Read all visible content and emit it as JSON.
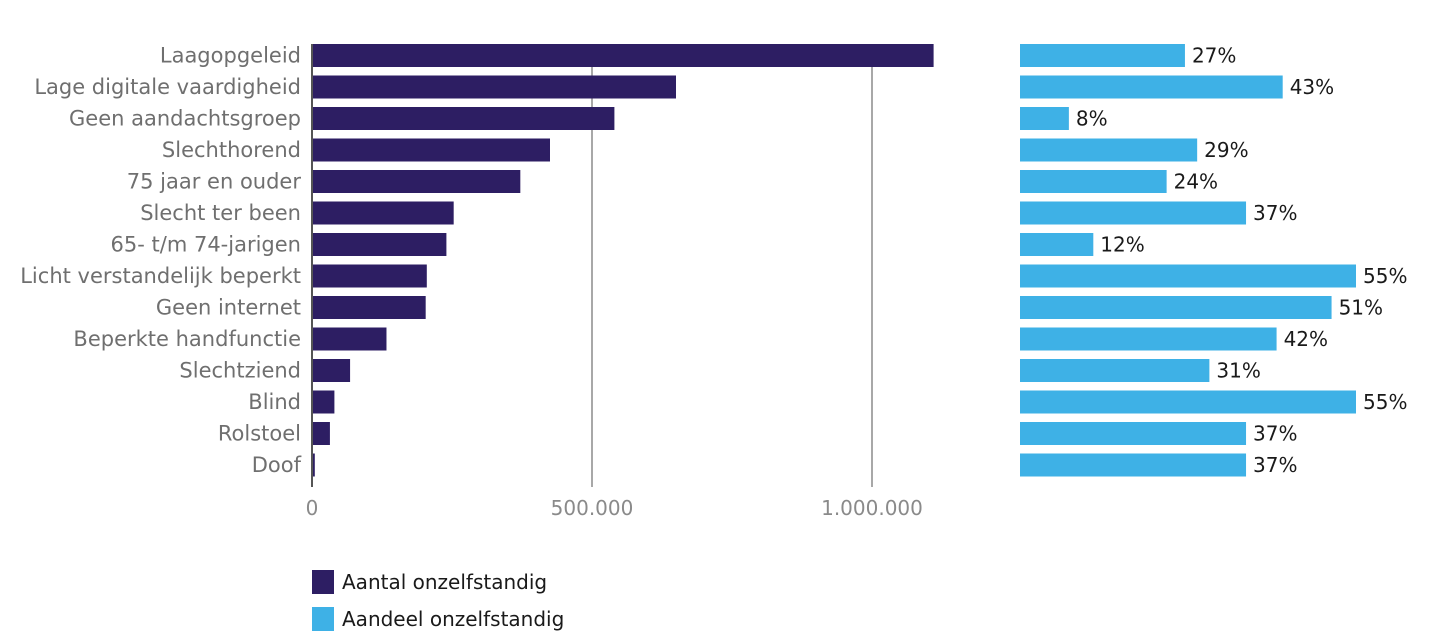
{
  "chart_data": {
    "type": "bar",
    "orientation": "horizontal",
    "categories": [
      "Laagopgeleid",
      "Lage digitale vaardigheid",
      "Geen aandachtsgroep",
      "Slechthorend",
      "75 jaar en ouder",
      "Slecht ter been",
      "65- t/m 74-jarigen",
      "Licht verstandelijk beperkt",
      "Geen internet",
      "Beperkte handfunctie",
      "Slechtziend",
      "Blind",
      "Rolstoel",
      "Doof"
    ],
    "series": [
      {
        "name": "Aantal onzelfstandig",
        "color": "#2d1e63",
        "values": [
          1110000,
          650000,
          540000,
          425000,
          372000,
          253000,
          240000,
          205000,
          203000,
          133000,
          68000,
          40000,
          32000,
          5000
        ]
      },
      {
        "name": "Aandeel onzelfstandig",
        "color": "#3eb1e6",
        "values": [
          27,
          43,
          8,
          29,
          24,
          37,
          12,
          55,
          51,
          42,
          31,
          55,
          37,
          37
        ],
        "labels": [
          "27%",
          "43%",
          "8%",
          "29%",
          "24%",
          "37%",
          "12%",
          "55%",
          "51%",
          "42%",
          "31%",
          "55%",
          "37%",
          "37%"
        ]
      }
    ],
    "xlim": [
      0,
      1120000
    ],
    "xticks": [
      0,
      500000,
      1000000
    ],
    "xtick_labels": [
      "0",
      "500.000",
      "1.000.000"
    ],
    "share_xlim": [
      0,
      55
    ],
    "grid": true,
    "title": "",
    "xlabel": "",
    "ylabel": ""
  },
  "legend": [
    {
      "label": "Aantal onzelfstandig",
      "color": "#2d1e63"
    },
    {
      "label": "Aandeel onzelfstandig",
      "color": "#3eb1e6"
    }
  ],
  "colors": {
    "grid": "#8c8c8c",
    "axis": "#555555"
  }
}
